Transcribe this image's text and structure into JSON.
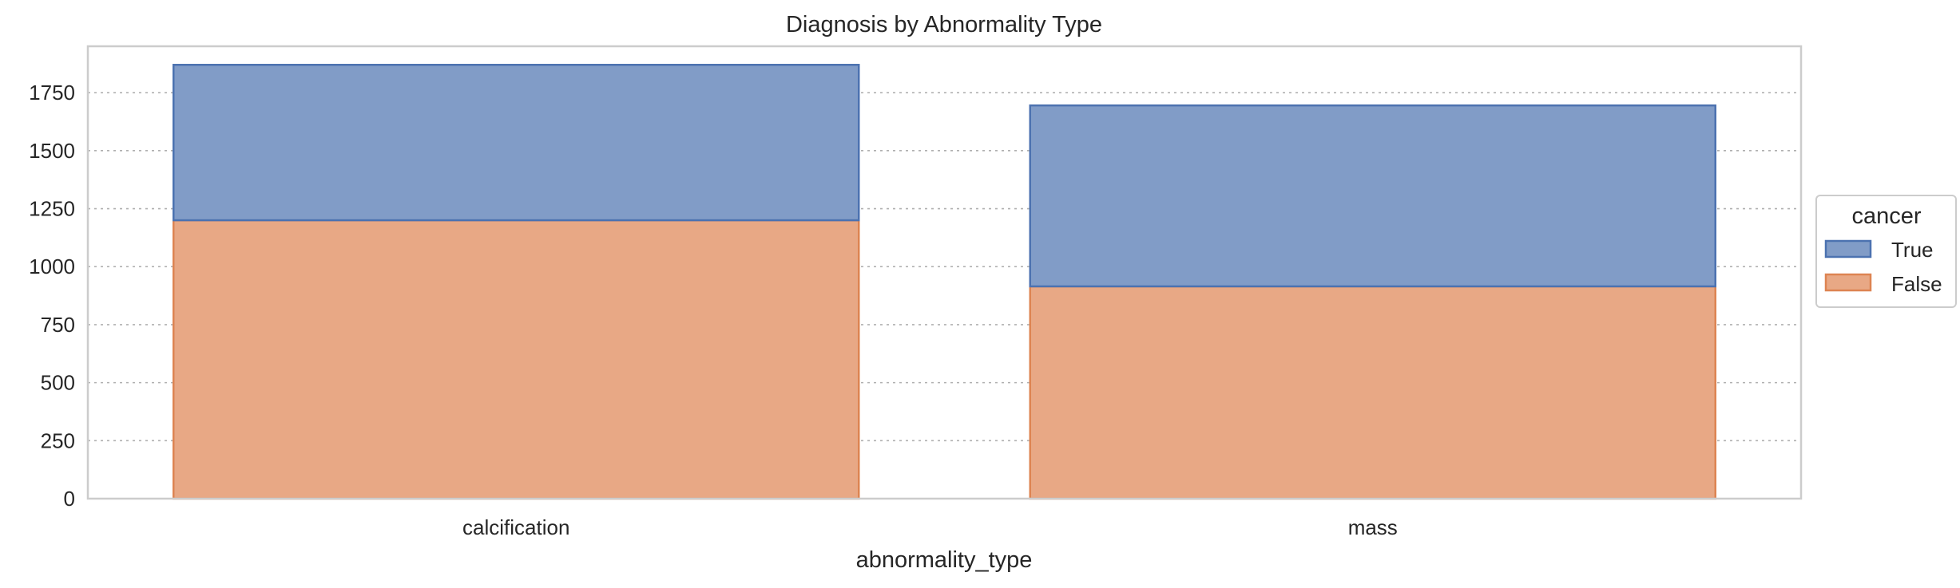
{
  "chart_data": {
    "type": "bar",
    "stacked": true,
    "title": "Diagnosis by Abnormality Type",
    "xlabel": "abnormality_type",
    "ylabel": "",
    "categories": [
      "calcification",
      "mass"
    ],
    "series": [
      {
        "name": "False",
        "color": "#e8a885",
        "edge": "#dd8452",
        "values": [
          1200,
          915
        ]
      },
      {
        "name": "True",
        "color": "#819cc7",
        "edge": "#4c72b0",
        "values": [
          670,
          780
        ]
      }
    ],
    "ylim": [
      0,
      1950
    ],
    "yticks": [
      0,
      250,
      500,
      750,
      1000,
      1250,
      1500,
      1750
    ],
    "grid": "horizontal-dotted",
    "legend": {
      "title": "cancer",
      "placement": "right",
      "entries": [
        {
          "label": "True",
          "color": "#819cc7",
          "edge": "#4c72b0"
        },
        {
          "label": "False",
          "color": "#e8a885",
          "edge": "#dd8452"
        }
      ]
    }
  }
}
